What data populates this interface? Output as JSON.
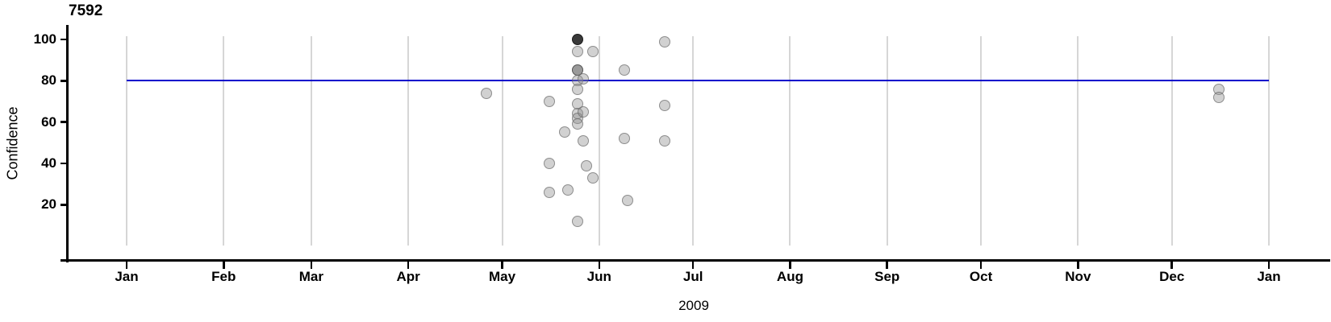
{
  "chart_data": {
    "type": "scatter",
    "title": "7592",
    "xlabel": "2009",
    "ylabel": "Confidence",
    "x_axis": {
      "start_date": "2009-01-01",
      "end_date": "2010-01-01",
      "grid": true,
      "tick_dates": [
        "2009-01-01",
        "2009-02-01",
        "2009-03-01",
        "2009-04-01",
        "2009-05-01",
        "2009-06-01",
        "2009-07-01",
        "2009-08-01",
        "2009-09-01",
        "2009-10-01",
        "2009-11-01",
        "2009-12-01",
        "2010-01-01"
      ],
      "tick_labels": [
        "Jan",
        "Feb",
        "Mar",
        "Apr",
        "May",
        "Jun",
        "Jul",
        "Aug",
        "Sep",
        "Oct",
        "Nov",
        "Dec",
        "Jan"
      ]
    },
    "y_axis": {
      "ticks": [
        20,
        40,
        60,
        80,
        100
      ],
      "range": [
        -8,
        107
      ]
    },
    "reference_line": {
      "value": 80,
      "color": "#0000cc"
    },
    "colors": {
      "point_fill": "#c8c8c8",
      "point_border": "#9c9c9c",
      "point_double_overlap": "#9a9a9a",
      "point_triple_overlap": "#3c3c3c",
      "grid": "#d6d6d6",
      "axis": "#000000",
      "reference_line": "#0000cc"
    },
    "points": [
      {
        "date": "2009-04-26",
        "confidence": 74,
        "shade": "light"
      },
      {
        "date": "2009-05-16",
        "confidence": 70,
        "shade": "light"
      },
      {
        "date": "2009-05-16",
        "confidence": 40,
        "shade": "light"
      },
      {
        "date": "2009-05-16",
        "confidence": 26,
        "shade": "light"
      },
      {
        "date": "2009-05-21",
        "confidence": 55,
        "shade": "light"
      },
      {
        "date": "2009-05-22",
        "confidence": 27,
        "shade": "light"
      },
      {
        "date": "2009-05-25",
        "confidence": 100,
        "shade": "dark"
      },
      {
        "date": "2009-05-25",
        "confidence": 94,
        "shade": "light"
      },
      {
        "date": "2009-05-25",
        "confidence": 85,
        "shade": "medium"
      },
      {
        "date": "2009-05-25",
        "confidence": 80,
        "shade": "light"
      },
      {
        "date": "2009-05-25",
        "confidence": 76,
        "shade": "light"
      },
      {
        "date": "2009-05-25",
        "confidence": 69,
        "shade": "light"
      },
      {
        "date": "2009-05-25",
        "confidence": 64,
        "shade": "light"
      },
      {
        "date": "2009-05-25",
        "confidence": 62,
        "shade": "light"
      },
      {
        "date": "2009-05-25",
        "confidence": 59,
        "shade": "light"
      },
      {
        "date": "2009-05-25",
        "confidence": 12,
        "shade": "light"
      },
      {
        "date": "2009-05-27",
        "confidence": 81,
        "shade": "light"
      },
      {
        "date": "2009-05-27",
        "confidence": 65,
        "shade": "light"
      },
      {
        "date": "2009-05-27",
        "confidence": 51,
        "shade": "light"
      },
      {
        "date": "2009-05-28",
        "confidence": 39,
        "shade": "light"
      },
      {
        "date": "2009-05-30",
        "confidence": 94,
        "shade": "light"
      },
      {
        "date": "2009-05-30",
        "confidence": 33,
        "shade": "light"
      },
      {
        "date": "2009-06-09",
        "confidence": 85,
        "shade": "light"
      },
      {
        "date": "2009-06-09",
        "confidence": 52,
        "shade": "light"
      },
      {
        "date": "2009-06-10",
        "confidence": 22,
        "shade": "light"
      },
      {
        "date": "2009-06-22",
        "confidence": 99,
        "shade": "light"
      },
      {
        "date": "2009-06-22",
        "confidence": 68,
        "shade": "light"
      },
      {
        "date": "2009-06-22",
        "confidence": 51,
        "shade": "light"
      },
      {
        "date": "2009-12-16",
        "confidence": 76,
        "shade": "light"
      },
      {
        "date": "2009-12-16",
        "confidence": 72,
        "shade": "light"
      }
    ]
  }
}
